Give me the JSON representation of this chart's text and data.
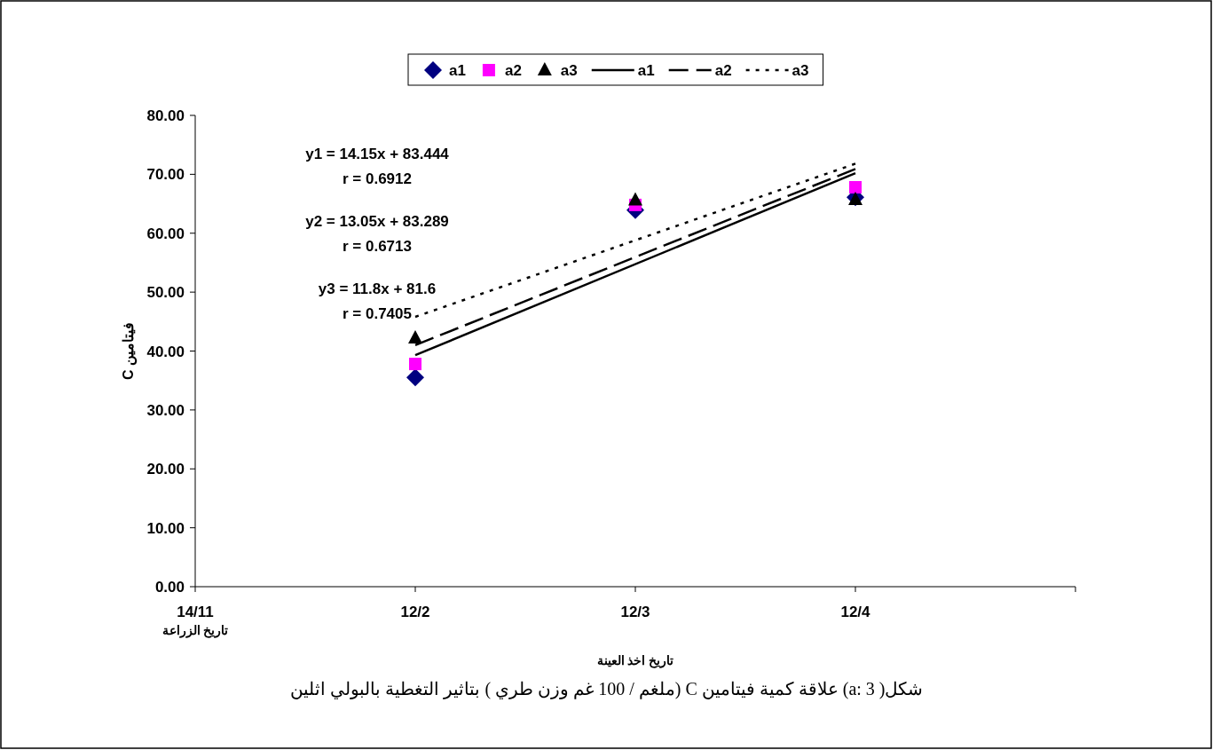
{
  "chart_data": {
    "type": "scatter",
    "xlabel": "تاريخ اخذ العينة",
    "ylabel": "فيتامين C",
    "legend": "top",
    "grid": false,
    "categories": [
      "14/11\nتاريخ الزراعة",
      "12/2",
      "12/3",
      "12/4",
      null
    ],
    "ylim": [
      0,
      80
    ],
    "yticks": [
      {
        "value": 0,
        "label": "0.00"
      },
      {
        "value": 10,
        "label": "10.00"
      },
      {
        "value": 20,
        "label": "20.00"
      },
      {
        "value": 30,
        "label": "30.00"
      },
      {
        "value": 40,
        "label": "40.00"
      },
      {
        "value": 50,
        "label": "50.00"
      },
      {
        "value": 60,
        "label": "60.00"
      },
      {
        "value": 70,
        "label": "70.00"
      },
      {
        "value": 80,
        "label": "80.00"
      }
    ],
    "series": [
      {
        "name": "a1",
        "marker": "diamond",
        "color": "#000080",
        "x": [
          "12/2",
          "12/3",
          "12/4"
        ],
        "values": [
          35.5,
          63.9,
          66.1
        ]
      },
      {
        "name": "a2",
        "marker": "square",
        "color": "#ff00ff",
        "x": [
          "12/2",
          "12/3",
          "12/4"
        ],
        "values": [
          37.8,
          64.8,
          67.8
        ]
      },
      {
        "name": "a3",
        "marker": "triangle",
        "color": "#000000",
        "x": [
          "12/2",
          "12/3",
          "12/4"
        ],
        "values": [
          42.2,
          65.6,
          65.7
        ]
      },
      {
        "name": "a1",
        "type": "line",
        "marker": "none",
        "line_style": "solid",
        "color": "#000000",
        "x": [
          "12/2",
          "12/4"
        ],
        "values": [
          39.3,
          70.2
        ]
      },
      {
        "name": "a2",
        "type": "line",
        "marker": "none",
        "line_style": "dashed",
        "color": "#000000",
        "x": [
          "12/2",
          "12/4"
        ],
        "values": [
          41.0,
          70.9
        ]
      },
      {
        "name": "a3",
        "type": "line",
        "marker": "none",
        "line_style": "dotted",
        "color": "#000000",
        "x": [
          "12/2",
          "12/4"
        ],
        "values": [
          45.8,
          71.8
        ]
      }
    ],
    "annotations": [
      "y1 = 14.15x + 83.444",
      "r = 0.6912",
      "y2 = 13.05x + 83.289",
      "r =  0.6713",
      "y3 = 11.8x + 81.6",
      "r = 0.7405",
      "شكل( a: 3) علاقة كمية فيتامين C (ملغم / 100 غم وزن طري ) بتاثير التغطية بالبولي اثلين"
    ]
  }
}
